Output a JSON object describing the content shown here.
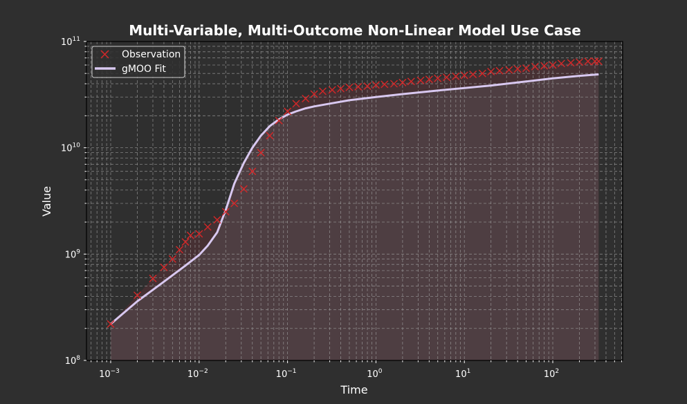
{
  "chart_data": {
    "type": "line",
    "title": "Multi-Variable, Multi-Outcome Non-Linear Model Use Case",
    "xlabel": "Time",
    "ylabel": "Value",
    "xscale": "log",
    "yscale": "log",
    "xlim": [
      0.0005,
      600
    ],
    "ylim": [
      100000000.0,
      100000000000.0
    ],
    "grid": true,
    "grid_style": "dashed, major and minor",
    "legend_position": "upper left",
    "x_tick_labels": [
      "10^-3",
      "10^-2",
      "10^-1",
      "10^0",
      "10^1",
      "10^2"
    ],
    "y_tick_labels": [
      "10^8",
      "10^9",
      "10^10",
      "10^11"
    ],
    "colors": {
      "background": "#2f2f2f",
      "observation": "#d62728",
      "fit": "#d8c8f0",
      "fill": "#4e3e42",
      "grid": "#9a9a9a"
    },
    "series": [
      {
        "name": "Observation",
        "marker": "x",
        "x": [
          0.001,
          0.002,
          0.003,
          0.004,
          0.005,
          0.006,
          0.007,
          0.008,
          0.01,
          0.0125,
          0.016,
          0.02,
          0.025,
          0.032,
          0.04,
          0.05,
          0.063,
          0.08,
          0.1,
          0.125,
          0.16,
          0.2,
          0.25,
          0.32,
          0.4,
          0.5,
          0.63,
          0.8,
          1,
          1.25,
          1.6,
          2,
          2.5,
          3.2,
          4,
          5,
          6.3,
          8,
          10,
          12.5,
          16,
          20,
          25,
          32,
          40,
          50,
          63,
          80,
          100,
          125,
          160,
          200,
          250,
          300,
          330
        ],
        "values": [
          220000000.0,
          410000000.0,
          590000000.0,
          750000000.0,
          900000000.0,
          1100000000.0,
          1300000000.0,
          1500000000.0,
          1550000000.0,
          1800000000.0,
          2100000000.0,
          2500000000.0,
          3000000000.0,
          4100000000.0,
          6000000000.0,
          9000000000.0,
          13000000000.0,
          18000000000.0,
          22000000000.0,
          26000000000.0,
          29000000000.0,
          32000000000.0,
          34000000000.0,
          35000000000.0,
          36000000000.0,
          37000000000.0,
          37500000000.0,
          38000000000.0,
          39000000000.0,
          39500000000.0,
          40000000000.0,
          41000000000.0,
          42000000000.0,
          43000000000.0,
          44000000000.0,
          45000000000.0,
          46000000000.0,
          47000000000.0,
          48000000000.0,
          49000000000.0,
          50000000000.0,
          52000000000.0,
          53000000000.0,
          54000000000.0,
          55000000000.0,
          56000000000.0,
          58000000000.0,
          59000000000.0,
          60000000000.0,
          62000000000.0,
          63000000000.0,
          64000000000.0,
          65000000000.0,
          65000000000.0,
          65000000000.0
        ]
      },
      {
        "name": "gMOO Fit",
        "marker": "line",
        "x": [
          0.001,
          0.002,
          0.004,
          0.007,
          0.01,
          0.0125,
          0.016,
          0.02,
          0.025,
          0.032,
          0.04,
          0.05,
          0.063,
          0.08,
          0.1,
          0.125,
          0.16,
          0.2,
          0.3,
          0.5,
          1,
          2,
          5,
          10,
          20,
          50,
          100,
          200,
          330
        ],
        "values": [
          220000000.0,
          360000000.0,
          550000000.0,
          780000000.0,
          980000000.0,
          1200000000.0,
          1600000000.0,
          2600000000.0,
          4600000000.0,
          7200000000.0,
          10000000000.0,
          13000000000.0,
          16000000000.0,
          18500000000.0,
          20500000000.0,
          22000000000.0,
          23500000000.0,
          24500000000.0,
          26000000000.0,
          28000000000.0,
          30000000000.0,
          32000000000.0,
          34500000000.0,
          36500000000.0,
          38500000000.0,
          42000000000.0,
          45000000000.0,
          47500000000.0,
          49000000000.0
        ]
      }
    ]
  },
  "legend": {
    "items": [
      {
        "label": "Observation",
        "symbol": "x-marker"
      },
      {
        "label": "gMOO Fit",
        "symbol": "line"
      }
    ]
  },
  "axes": {
    "x": {
      "label": "Time",
      "ticks": [
        {
          "base": "10",
          "exp": "−3"
        },
        {
          "base": "10",
          "exp": "−2"
        },
        {
          "base": "10",
          "exp": "−1"
        },
        {
          "base": "10",
          "exp": "0"
        },
        {
          "base": "10",
          "exp": "1"
        },
        {
          "base": "10",
          "exp": "2"
        }
      ]
    },
    "y": {
      "label": "Value",
      "ticks": [
        {
          "base": "10",
          "exp": "8"
        },
        {
          "base": "10",
          "exp": "9"
        },
        {
          "base": "10",
          "exp": "10"
        },
        {
          "base": "10",
          "exp": "11"
        }
      ]
    }
  }
}
